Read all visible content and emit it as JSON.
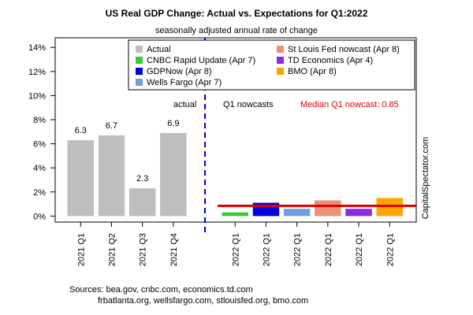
{
  "title": "US Real GDP Change: Actual vs. Expectations for Q1:2022",
  "subtitle": "seasonally adjusted annual rate of change",
  "sources_line1": "Sources: bea.gov, cnbc.com, economics.td.com",
  "sources_line2": "frbatlanta.org, wellsfargo.com, stlouisfed.org, bmo.com",
  "side_label": "CapitalSpectator.com",
  "annotations": {
    "actual": "actual",
    "nowcasts": "Q1 nowcasts",
    "median": "Median Q1 nowcast: 0.85"
  },
  "chart_data": {
    "type": "bar",
    "ylim": [
      -0.5,
      14.8
    ],
    "yticks": [
      0,
      2,
      4,
      6,
      8,
      10,
      12,
      14
    ],
    "ytick_labels": [
      "0%",
      "2%",
      "4%",
      "6%",
      "8%",
      "10%",
      "12%",
      "14%"
    ],
    "categories": [
      "2021 Q1",
      "2021 Q2",
      "2021 Q3",
      "2021 Q4",
      "",
      "2022 Q1",
      "2022 Q1",
      "2022 Q1",
      "2022 Q1",
      "2022 Q1",
      "2022 Q1"
    ],
    "values": [
      6.3,
      6.7,
      2.3,
      6.9,
      null,
      0.3,
      1.1,
      0.6,
      1.3,
      0.6,
      1.5
    ],
    "value_labels": [
      "6.3",
      "6.7",
      "2.3",
      "6.9",
      "",
      "",
      "",
      "",
      "",
      "",
      ""
    ],
    "colors": [
      "#bebebe",
      "#bebebe",
      "#bebebe",
      "#bebebe",
      "",
      "#33cc33",
      "#0000e0",
      "#6f9fdf",
      "#e8907a",
      "#8a2be2",
      "#ffa500"
    ],
    "median_line": 0.85,
    "median_color": "#e00000",
    "divider_color": "#0000cc",
    "legend": [
      {
        "label": "Actual",
        "color": "#bebebe"
      },
      {
        "label": "St Louis Fed nowcast (Apr 8)",
        "color": "#e8907a"
      },
      {
        "label": "CNBC Rapid Update (Apr 7)",
        "color": "#33cc33"
      },
      {
        "label": "TD Economics (Apr 4)",
        "color": "#8a2be2"
      },
      {
        "label": "GDPNow (Apr 8)",
        "color": "#0000e0"
      },
      {
        "label": "BMO (Apr 8)",
        "color": "#ffa500"
      },
      {
        "label": "Wells Fargo (Apr 7)",
        "color": "#6f9fdf"
      }
    ],
    "legend_position": "top-right",
    "grid": false
  }
}
